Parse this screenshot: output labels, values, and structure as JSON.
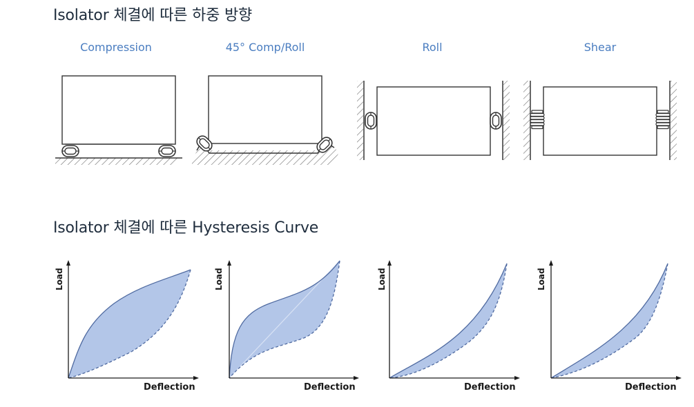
{
  "sections": {
    "mounting_title": "Isolator 체결에 따른 하중 방향",
    "hysteresis_title": "Isolator 체결에 따른 Hysteresis Curve"
  },
  "configurations": [
    {
      "label": "Compression"
    },
    {
      "label": "45° Comp/Roll"
    },
    {
      "label": "Roll"
    },
    {
      "label": "Shear"
    }
  ],
  "chart_data": [
    {
      "type": "area",
      "config": "Compression",
      "ylabel": "Load",
      "xlabel": "Deflection"
    },
    {
      "type": "area",
      "config": "45° Comp/Roll",
      "ylabel": "Load",
      "xlabel": "Deflection"
    },
    {
      "type": "area",
      "config": "Roll",
      "ylabel": "Load",
      "xlabel": "Deflection"
    },
    {
      "type": "area",
      "config": "Shear",
      "ylabel": "Load",
      "xlabel": "Deflection"
    }
  ],
  "colors": {
    "title": "#1f2d3d",
    "config_label": "#4a7dc0",
    "loop_fill": "#b3c6e8",
    "loop_stroke": "#4f6aa0",
    "axis": "#1a1a1a"
  }
}
